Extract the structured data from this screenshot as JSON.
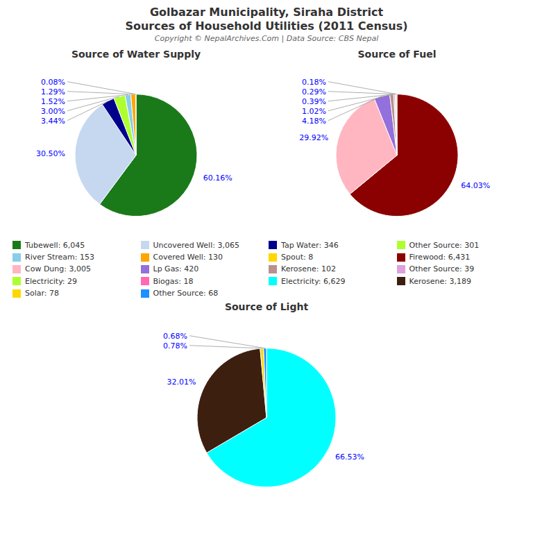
{
  "title": "Golbazar Municipality, Siraha District",
  "subtitle": "Sources of Household Utilities (2011 Census)",
  "annotations": [
    "Copyright © NepalArchives.Com | Data Source: CBS Nepal"
  ],
  "chart_data": [
    {
      "type": "pie",
      "title": "Source of Water Supply",
      "categories": [
        "Tubewell: 6,045",
        "Uncovered Well: 3,065",
        "Tap Water: 346",
        "Other Source: 301",
        "River Stream: 153",
        "Covered Well: 130",
        "Spout: 8"
      ],
      "values": [
        60.16,
        30.5,
        3.44,
        3.0,
        1.52,
        1.29,
        0.08
      ],
      "value_labels": [
        "60.16%",
        "30.50%",
        "3.44%",
        "3.00%",
        "1.52%",
        "1.29%",
        "0.08%"
      ],
      "colors": [
        "#1A7A1A",
        "#C5D8F0",
        "#00008B",
        "#ADFF2F",
        "#87CEEB",
        "#FFA500",
        "#FFD700"
      ],
      "data_labels": true,
      "legend": "bottom"
    },
    {
      "type": "pie",
      "title": "Source of Fuel",
      "categories": [
        "Firewood: 6,431",
        "Cow Dung: 3,005",
        "Lp Gas: 420",
        "Kerosene: 102",
        "Other Source: 39",
        "Electricity: 29",
        "Biogas: 18"
      ],
      "values": [
        64.03,
        29.92,
        4.18,
        1.02,
        0.39,
        0.29,
        0.18
      ],
      "value_labels": [
        "64.03%",
        "29.92%",
        "4.18%",
        "1.02%",
        "0.39%",
        "0.29%",
        "0.18%"
      ],
      "colors": [
        "#8B0000",
        "#FFB6C1",
        "#9370DB",
        "#BC8F8F",
        "#DDA0DD",
        "#ADFF2F",
        "#FF69B4"
      ],
      "data_labels": true,
      "legend": "bottom"
    },
    {
      "type": "pie",
      "title": "Source of Light",
      "categories": [
        "Electricity: 6,629",
        "Kerosene: 3,189",
        "Solar: 78",
        "Other Source: 68"
      ],
      "values": [
        66.53,
        32.01,
        0.78,
        0.68
      ],
      "value_labels": [
        "66.53%",
        "32.01%",
        "0.78%",
        "0.68%"
      ],
      "colors": [
        "#00FFFF",
        "#3D1F10",
        "#FFD700",
        "#1E90FF"
      ],
      "data_labels": true,
      "legend": "bottom"
    }
  ]
}
